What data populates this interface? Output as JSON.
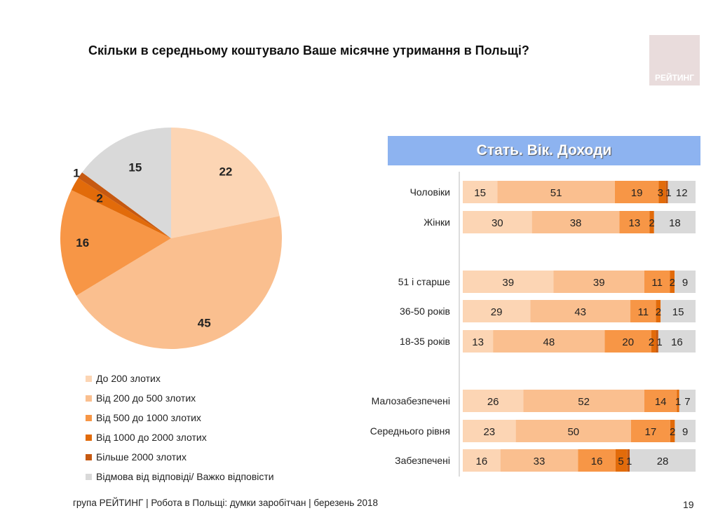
{
  "title": "Скільки в середньому коштувало Ваше місячне утримання в Польщі?",
  "logo_text": "РЕЙТИНГ",
  "banner": "Стать. Вік. Доходи",
  "footer": "група РЕЙТИНГ  | Робота в Польщі: думки заробітчан  | березень 2018",
  "page_number": "19",
  "colors": [
    "#fcd5b4",
    "#fabf8f",
    "#f79646",
    "#e26b0a",
    "#c65911",
    "#d9d9d9"
  ],
  "chart_data": [
    {
      "type": "pie",
      "legend_position": "bottom",
      "categories": [
        "До 200 злотих",
        "Від 200 до 500 злотих",
        "Від 500 до 1000 злотих",
        "Від 1000 до 2000 злотих",
        "Більше 2000 злотих",
        "Відмова від відповіді/ Важко відповісти"
      ],
      "values": [
        22,
        45,
        16,
        2,
        1,
        15
      ]
    },
    {
      "type": "bar",
      "stacked": true,
      "orientation": "horizontal",
      "categories": [
        "Чоловіки",
        "Жінки",
        "51 і старше",
        "36-50 років",
        "18-35 років",
        "Малозабезпечені",
        "Середнього рівня",
        "Забезпечені"
      ],
      "series": [
        {
          "name": "До 200 злотих",
          "values": [
            15,
            30,
            39,
            29,
            13,
            26,
            23,
            16
          ]
        },
        {
          "name": "Від 200 до 500 злотих",
          "values": [
            51,
            38,
            39,
            43,
            48,
            52,
            50,
            33
          ]
        },
        {
          "name": "Від 500 до 1000 злотих",
          "values": [
            19,
            13,
            11,
            11,
            20,
            14,
            17,
            16
          ]
        },
        {
          "name": "Від 1000 до 2000 злотих",
          "values": [
            3,
            2,
            2,
            2,
            2,
            1,
            2,
            5
          ]
        },
        {
          "name": "Більше 2000 злотих",
          "values": [
            1,
            0,
            0,
            0,
            1,
            0,
            0,
            1
          ]
        },
        {
          "name": "Відмова від відповіді/ Важко відповісти",
          "values": [
            12,
            18,
            9,
            15,
            16,
            7,
            9,
            28
          ]
        }
      ]
    }
  ]
}
